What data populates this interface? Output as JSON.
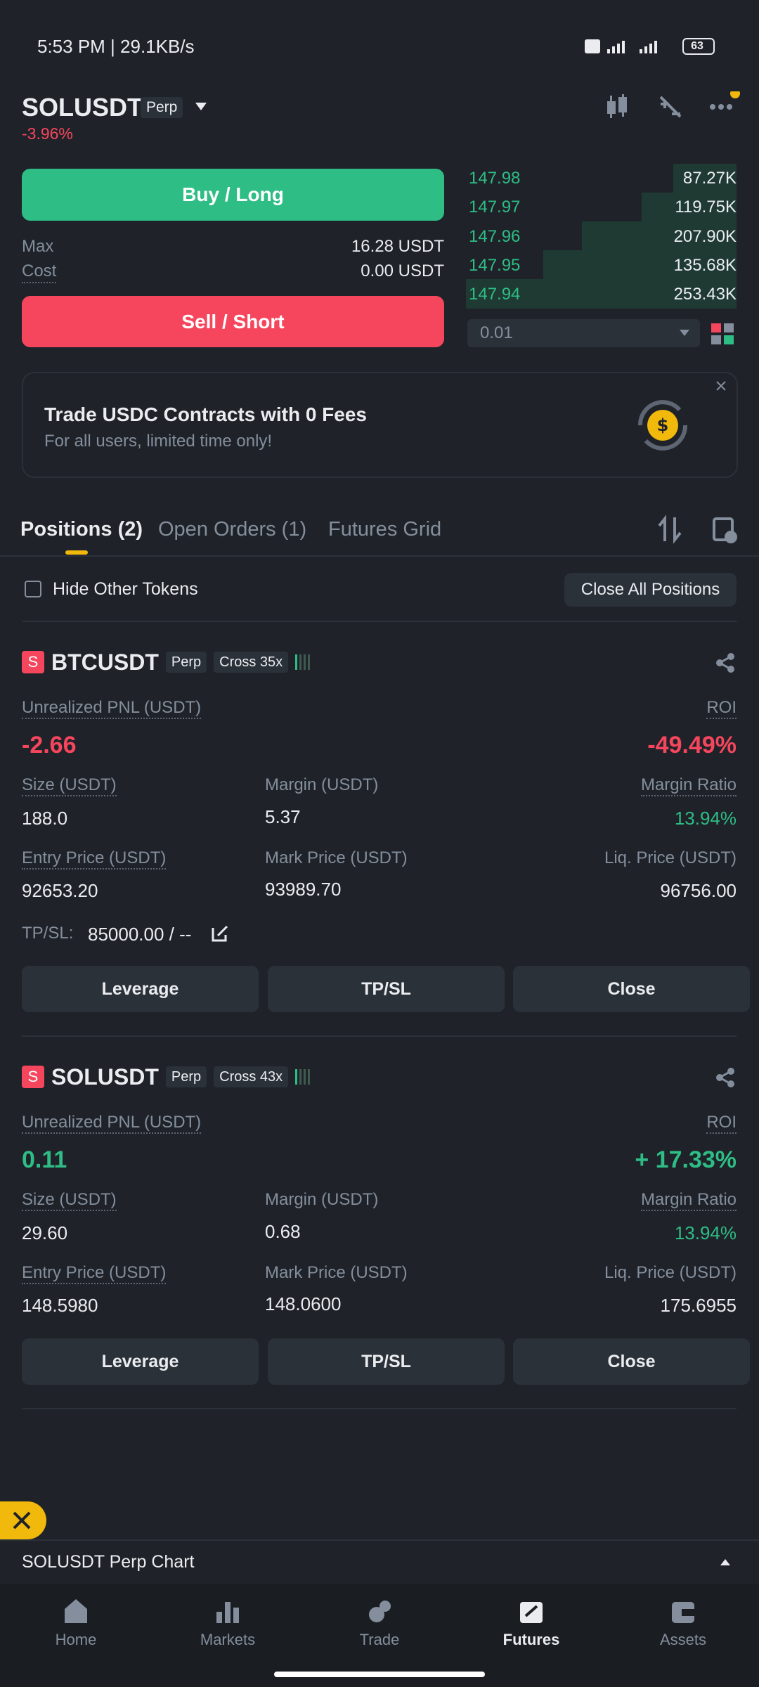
{
  "status_bar": {
    "time": "5:53 PM | 29.1KB/s",
    "battery": "63"
  },
  "header": {
    "symbol": "SOLUSDT",
    "badge": "Perp",
    "change": "-3.96%"
  },
  "trade": {
    "buy": "Buy / Long",
    "max_label": "Max",
    "max_value": "16.28 USDT",
    "cost_label": "Cost",
    "cost_value": "0.00 USDT",
    "sell": "Sell / Short"
  },
  "order_book": {
    "rows": [
      {
        "price": "147.98",
        "qty": "87.27K"
      },
      {
        "price": "147.97",
        "qty": "119.75K"
      },
      {
        "price": "147.96",
        "qty": "207.90K"
      },
      {
        "price": "147.95",
        "qty": "135.68K"
      },
      {
        "price": "147.94",
        "qty": "253.43K"
      }
    ],
    "precision": "0.01"
  },
  "banner": {
    "title": "Trade USDC Contracts with 0 Fees",
    "subtitle": "For all users, limited time only!"
  },
  "tabs": [
    "Positions (2)",
    "Open Orders (1)",
    "Futures Grid"
  ],
  "filter": {
    "hide_label": "Hide Other Tokens",
    "close_all": "Close All Positions"
  },
  "positions": [
    {
      "icon": "S",
      "symbol": "BTCUSDT",
      "badge": "Perp",
      "mode": "Cross 35x",
      "pnl_label": "Unrealized PNL (USDT)",
      "pnl": "-2.66",
      "roi_label": "ROI",
      "roi": "-49.49%",
      "size_label": "Size (USDT)",
      "size": "188.0",
      "margin_label": "Margin (USDT)",
      "margin": "5.37",
      "ratio_label": "Margin Ratio",
      "ratio": "13.94%",
      "entry_label": "Entry Price (USDT)",
      "entry": "92653.20",
      "mark_label": "Mark Price (USDT)",
      "mark": "93989.70",
      "liq_label": "Liq. Price (USDT)",
      "liq": "96756.00",
      "tpsl_label": "TP/SL:",
      "tpsl": "85000.00 / --",
      "buttons": [
        "Leverage",
        "TP/SL",
        "Close"
      ]
    },
    {
      "icon": "S",
      "symbol": "SOLUSDT",
      "badge": "Perp",
      "mode": "Cross 43x",
      "pnl_label": "Unrealized PNL (USDT)",
      "pnl": "0.11",
      "roi_label": "ROI",
      "roi": "+ 17.33%",
      "size_label": "Size (USDT)",
      "size": "29.60",
      "margin_label": "Margin (USDT)",
      "margin": "0.68",
      "ratio_label": "Margin Ratio",
      "ratio": "13.94%",
      "entry_label": "Entry Price (USDT)",
      "entry": "148.5980",
      "mark_label": "Mark Price (USDT)",
      "mark": "148.0600",
      "liq_label": "Liq. Price (USDT)",
      "liq": "175.6955",
      "buttons": [
        "Leverage",
        "TP/SL",
        "Close"
      ]
    }
  ],
  "chart_bar": "SOLUSDT Perp Chart",
  "nav": [
    "Home",
    "Markets",
    "Trade",
    "Futures",
    "Assets"
  ]
}
